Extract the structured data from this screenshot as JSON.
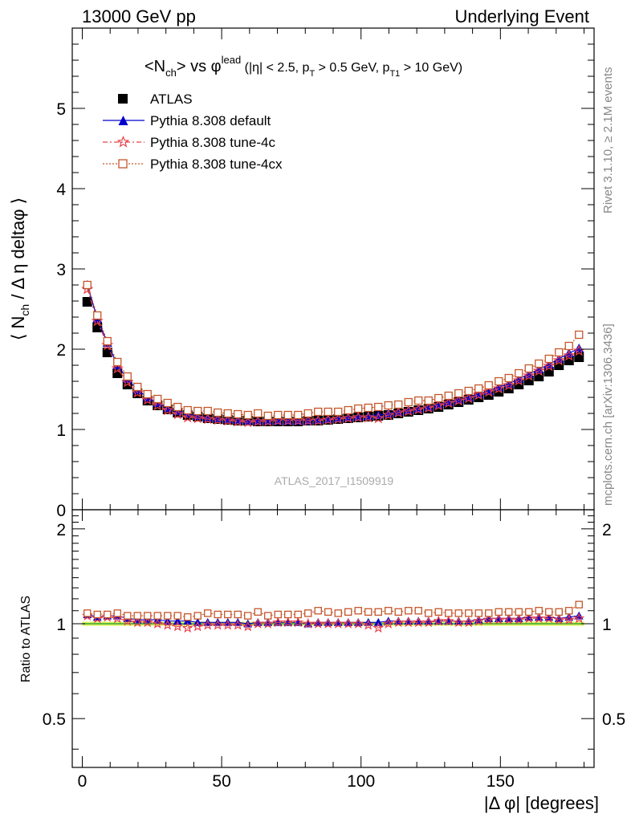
{
  "header": {
    "left": "13000 GeV pp",
    "right": "Underlying Event"
  },
  "side_labels": {
    "rivet": "Rivet 3.1.10, ≥ 2.1M events",
    "mcplots": "mcplots.cern.ch [arXiv:1306.3436]"
  },
  "watermark": "ATLAS_2017_I1509919",
  "plot_title": {
    "main": "<N",
    "main_sub": "ch",
    "main_rest": "> vs φ",
    "main_sup": "lead",
    "cuts_1": " (|η| < 2.5, p",
    "cuts_sub1": "T",
    "cuts_2": " > 0.5 GeV, p",
    "cuts_sub2": "T1",
    "cuts_3": " > 10 GeV)"
  },
  "ylabel_main": {
    "pre": "⟨ N",
    "sub": "ch",
    "post": " / Δ η deltaφ ⟩"
  },
  "ylabel_ratio": "Ratio to ATLAS",
  "xlabel": "|Δ φ| [degrees]",
  "legend": {
    "atlas": "ATLAS",
    "default": "Pythia 8.308 default",
    "tune4c": "Pythia 8.308 tune-4c",
    "tune4cx": "Pythia 8.308 tune-4cx"
  },
  "colors": {
    "atlas": "#000000",
    "default": "#0000cc",
    "tune4c": "#e8424a",
    "tune4cx": "#c4562a",
    "band": "#ddf060",
    "ref_line": "#33aa33"
  },
  "chart_data": {
    "type": "scatter",
    "x_range": [
      -3.6,
      183.6
    ],
    "ylim_main": [
      0,
      6
    ],
    "ylim_ratio": [
      0.35,
      2.3
    ],
    "x_ticks": [
      0,
      50,
      100,
      150
    ],
    "y_ticks_main": [
      0,
      1,
      2,
      3,
      4,
      5
    ],
    "y_ticks_ratio": [
      0.5,
      1,
      2
    ],
    "x": [
      1.8,
      5.4,
      9,
      12.6,
      16.2,
      19.8,
      23.4,
      27,
      30.6,
      34.2,
      37.8,
      41.4,
      45,
      48.6,
      52.2,
      55.8,
      59.4,
      63,
      66.6,
      70.2,
      73.8,
      77.4,
      81,
      84.6,
      88.2,
      91.8,
      95.4,
      99,
      102.6,
      106.2,
      109.8,
      113.4,
      117,
      120.6,
      124.2,
      127.8,
      131.4,
      135,
      138.6,
      142.2,
      145.8,
      149.4,
      153,
      156.6,
      160.2,
      163.8,
      167.4,
      171,
      174.6,
      178.2
    ],
    "series": [
      {
        "name": "ATLAS",
        "marker": "filled-square",
        "values": [
          2.59,
          2.27,
          1.96,
          1.7,
          1.56,
          1.45,
          1.36,
          1.3,
          1.25,
          1.21,
          1.18,
          1.16,
          1.14,
          1.13,
          1.12,
          1.11,
          1.11,
          1.1,
          1.1,
          1.1,
          1.1,
          1.1,
          1.11,
          1.11,
          1.12,
          1.13,
          1.14,
          1.15,
          1.16,
          1.17,
          1.18,
          1.2,
          1.22,
          1.24,
          1.26,
          1.28,
          1.31,
          1.34,
          1.37,
          1.4,
          1.43,
          1.47,
          1.51,
          1.56,
          1.61,
          1.66,
          1.72,
          1.8,
          1.86,
          1.9
        ]
      },
      {
        "name": "Pythia 8.308 default",
        "marker": "filled-triangle",
        "values": [
          2.8,
          2.38,
          2.08,
          1.8,
          1.63,
          1.49,
          1.4,
          1.33,
          1.27,
          1.23,
          1.2,
          1.17,
          1.15,
          1.14,
          1.13,
          1.12,
          1.11,
          1.11,
          1.11,
          1.11,
          1.11,
          1.11,
          1.11,
          1.12,
          1.13,
          1.14,
          1.15,
          1.16,
          1.17,
          1.18,
          1.2,
          1.22,
          1.24,
          1.26,
          1.28,
          1.31,
          1.34,
          1.37,
          1.4,
          1.44,
          1.48,
          1.53,
          1.57,
          1.63,
          1.69,
          1.75,
          1.81,
          1.88,
          1.95,
          2.01
        ]
      },
      {
        "name": "Pythia 8.308 tune-4c",
        "marker": "open-star",
        "values": [
          2.75,
          2.35,
          2.05,
          1.76,
          1.59,
          1.46,
          1.37,
          1.3,
          1.24,
          1.19,
          1.15,
          1.14,
          1.13,
          1.12,
          1.11,
          1.1,
          1.09,
          1.1,
          1.1,
          1.11,
          1.11,
          1.11,
          1.11,
          1.11,
          1.12,
          1.13,
          1.14,
          1.15,
          1.15,
          1.14,
          1.18,
          1.21,
          1.23,
          1.25,
          1.27,
          1.3,
          1.33,
          1.36,
          1.39,
          1.43,
          1.47,
          1.51,
          1.55,
          1.61,
          1.67,
          1.73,
          1.79,
          1.86,
          1.92,
          1.98
        ]
      },
      {
        "name": "Pythia 8.308 tune-4cx",
        "marker": "open-square",
        "values": [
          2.8,
          2.42,
          2.1,
          1.84,
          1.66,
          1.53,
          1.44,
          1.38,
          1.33,
          1.28,
          1.24,
          1.23,
          1.23,
          1.21,
          1.2,
          1.19,
          1.18,
          1.2,
          1.17,
          1.18,
          1.18,
          1.18,
          1.2,
          1.22,
          1.22,
          1.22,
          1.24,
          1.26,
          1.27,
          1.28,
          1.3,
          1.31,
          1.34,
          1.36,
          1.36,
          1.39,
          1.42,
          1.45,
          1.48,
          1.51,
          1.55,
          1.6,
          1.64,
          1.7,
          1.76,
          1.82,
          1.88,
          1.96,
          2.04,
          2.18
        ]
      }
    ],
    "ratio_series": [
      {
        "name": "Pythia 8.308 default",
        "values": [
          1.07,
          1.05,
          1.06,
          1.06,
          1.04,
          1.03,
          1.03,
          1.03,
          1.02,
          1.02,
          1.02,
          1.01,
          1.01,
          1.01,
          1.01,
          1.01,
          1.0,
          1.01,
          1.01,
          1.01,
          1.01,
          1.01,
          1.0,
          1.01,
          1.01,
          1.01,
          1.01,
          1.01,
          1.01,
          1.01,
          1.02,
          1.02,
          1.02,
          1.02,
          1.02,
          1.02,
          1.02,
          1.02,
          1.02,
          1.03,
          1.04,
          1.04,
          1.04,
          1.04,
          1.05,
          1.05,
          1.05,
          1.04,
          1.05,
          1.06
        ]
      },
      {
        "name": "Pythia 8.308 tune-4c",
        "values": [
          1.06,
          1.04,
          1.05,
          1.04,
          1.02,
          1.01,
          1.01,
          1.0,
          0.99,
          0.98,
          0.97,
          0.98,
          0.99,
          0.99,
          0.99,
          0.99,
          0.98,
          1.0,
          1.0,
          1.01,
          1.01,
          1.01,
          1.0,
          1.0,
          1.0,
          1.0,
          1.0,
          1.0,
          0.99,
          0.97,
          1.0,
          1.01,
          1.01,
          1.01,
          1.01,
          1.02,
          1.02,
          1.01,
          1.01,
          1.02,
          1.03,
          1.03,
          1.03,
          1.03,
          1.04,
          1.04,
          1.04,
          1.03,
          1.03,
          1.04
        ]
      },
      {
        "name": "Pythia 8.308 tune-4cx",
        "values": [
          1.08,
          1.07,
          1.07,
          1.08,
          1.06,
          1.06,
          1.06,
          1.06,
          1.06,
          1.06,
          1.05,
          1.06,
          1.08,
          1.07,
          1.07,
          1.07,
          1.06,
          1.09,
          1.06,
          1.07,
          1.07,
          1.07,
          1.08,
          1.1,
          1.09,
          1.08,
          1.09,
          1.1,
          1.09,
          1.09,
          1.1,
          1.09,
          1.1,
          1.1,
          1.08,
          1.09,
          1.08,
          1.08,
          1.08,
          1.08,
          1.08,
          1.09,
          1.09,
          1.09,
          1.09,
          1.1,
          1.09,
          1.09,
          1.1,
          1.15
        ]
      }
    ]
  }
}
